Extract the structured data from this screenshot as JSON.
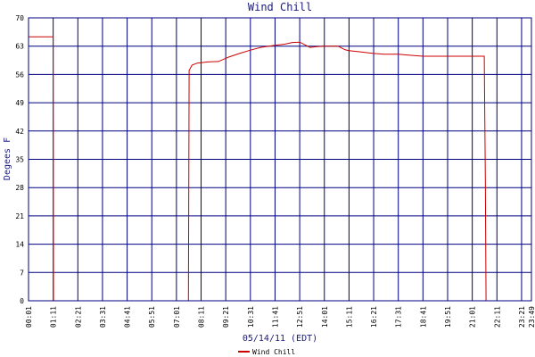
{
  "chart_data": {
    "type": "line",
    "title": "Wind Chill",
    "xlabel": "05/14/11 (EDT)",
    "ylabel": "Degees F",
    "ylim": [
      0,
      70
    ],
    "yticks": [
      0,
      7,
      14,
      21,
      28,
      35,
      42,
      49,
      56,
      63,
      70
    ],
    "xticks": [
      "00:01",
      "01:11",
      "02:21",
      "03:31",
      "04:41",
      "05:51",
      "07:01",
      "08:11",
      "09:21",
      "10:31",
      "11:41",
      "12:51",
      "14:01",
      "15:11",
      "16:21",
      "17:31",
      "18:41",
      "19:51",
      "21:01",
      "22:11",
      "23:21",
      "23:49"
    ],
    "grid": true,
    "legend_position": "bottom-left",
    "colors": {
      "series": "#cc0000",
      "grid": "#000080",
      "background": "#ffffff"
    },
    "series": [
      {
        "name": "Wind Chill",
        "points": [
          [
            "00:01",
            65.3
          ],
          [
            "01:11",
            65.3
          ],
          [
            "01:12",
            0
          ],
          [
            "07:35",
            0
          ],
          [
            "07:36",
            28
          ],
          [
            "07:37",
            57
          ],
          [
            "07:45",
            58.3
          ],
          [
            "08:00",
            58.8
          ],
          [
            "08:30",
            59.1
          ],
          [
            "09:00",
            59.2
          ],
          [
            "09:30",
            60.3
          ],
          [
            "10:00",
            61.2
          ],
          [
            "10:31",
            62
          ],
          [
            "11:00",
            62.7
          ],
          [
            "11:41",
            63.2
          ],
          [
            "12:10",
            63.5
          ],
          [
            "12:30",
            63.9
          ],
          [
            "12:51",
            64
          ],
          [
            "13:20",
            62.7
          ],
          [
            "13:40",
            62.9
          ],
          [
            "14:01",
            63
          ],
          [
            "14:40",
            63
          ],
          [
            "15:00",
            62.1
          ],
          [
            "15:11",
            61.9
          ],
          [
            "15:40",
            61.6
          ],
          [
            "16:21",
            61.2
          ],
          [
            "16:50",
            61
          ],
          [
            "17:31",
            61
          ],
          [
            "18:00",
            60.8
          ],
          [
            "18:41",
            60.5
          ],
          [
            "19:51",
            60.5
          ],
          [
            "21:01",
            60.5
          ],
          [
            "21:35",
            60.5
          ],
          [
            "21:38",
            30
          ],
          [
            "21:40",
            0
          ],
          [
            "23:49",
            0
          ]
        ]
      }
    ]
  }
}
